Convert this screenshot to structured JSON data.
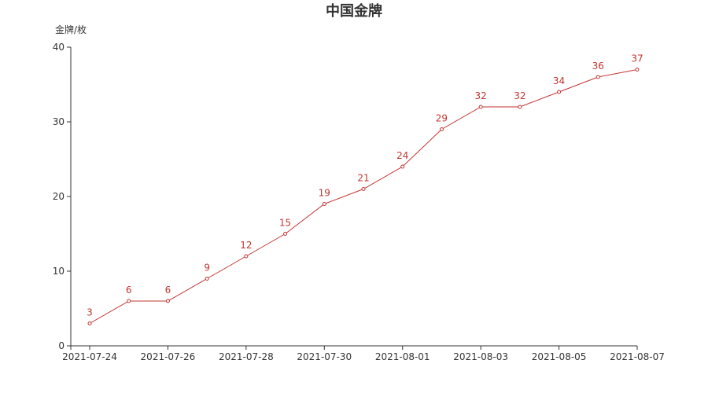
{
  "chart_data": {
    "type": "line",
    "title": "中国金牌",
    "ylabel": "金牌/枚",
    "xlabel": "",
    "x": [
      "2021-07-24",
      "2021-07-25",
      "2021-07-26",
      "2021-07-27",
      "2021-07-28",
      "2021-07-29",
      "2021-07-30",
      "2021-07-31",
      "2021-08-01",
      "2021-08-02",
      "2021-08-03",
      "2021-08-04",
      "2021-08-05",
      "2021-08-06",
      "2021-08-07"
    ],
    "series": [
      {
        "values": [
          3,
          6,
          6,
          9,
          12,
          15,
          19,
          21,
          24,
          29,
          32,
          32,
          34,
          36,
          37
        ]
      }
    ],
    "x_tick_labels": [
      "2021-07-24",
      "2021-07-26",
      "2021-07-28",
      "2021-07-30",
      "2021-08-01",
      "2021-08-03",
      "2021-08-05",
      "2021-08-07"
    ],
    "y_ticks": [
      0,
      10,
      20,
      30,
      40
    ],
    "ylim": [
      0,
      40
    ],
    "grid": false,
    "legend": "none",
    "colors": {
      "line": "#c23531",
      "axis": "#333333",
      "text": "#333333"
    }
  }
}
